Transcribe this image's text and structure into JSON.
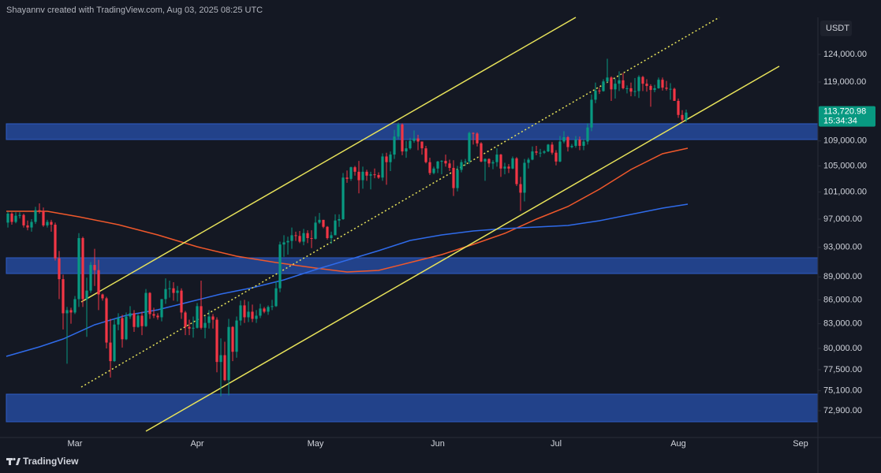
{
  "chart_data": {
    "type": "candlestick",
    "title": "Shayannv created with TradingView.com, Aug 03, 2025 08:25 UTC",
    "currency": "USDT",
    "watermark": "TradingView",
    "last_price": {
      "value": 113720.98,
      "label": "113,720.98"
    },
    "countdown": "15:34:34",
    "log_scale": true,
    "up_color": "#089981",
    "down_color": "#f23645",
    "ylim": [
      70050,
      131040
    ],
    "yticks": [
      {
        "value": 124000,
        "label": "124,000.00"
      },
      {
        "value": 119000,
        "label": "119,000.00"
      },
      {
        "value": 109000,
        "label": "109,000.00"
      },
      {
        "value": 105000,
        "label": "105,000.00"
      },
      {
        "value": 101000,
        "label": "101,000.00"
      },
      {
        "value": 97000,
        "label": "97,000.00"
      },
      {
        "value": 93000,
        "label": "93,000.00"
      },
      {
        "value": 89000,
        "label": "89,000.00"
      },
      {
        "value": 86000,
        "label": "86,000.00"
      },
      {
        "value": 83000,
        "label": "83,000.00"
      },
      {
        "value": 80000,
        "label": "80,000.00"
      },
      {
        "value": 77500,
        "label": "77,500.00"
      },
      {
        "value": 75100,
        "label": "75,100.00"
      },
      {
        "value": 72900,
        "label": "72,900.00"
      }
    ],
    "categories": [
      null,
      null,
      null,
      null,
      null,
      null,
      null,
      null,
      null,
      null,
      null,
      null,
      null,
      null,
      null,
      null,
      null,
      "Mar",
      null,
      null,
      null,
      null,
      null,
      null,
      null,
      null,
      null,
      null,
      null,
      null,
      null,
      null,
      null,
      null,
      null,
      null,
      null,
      null,
      null,
      null,
      null,
      null,
      null,
      null,
      null,
      null,
      null,
      null,
      "Apr",
      null,
      null,
      null,
      null,
      null,
      null,
      null,
      null,
      null,
      null,
      null,
      null,
      null,
      null,
      null,
      null,
      null,
      null,
      null,
      null,
      null,
      null,
      null,
      null,
      null,
      null,
      null,
      null,
      null,
      "May",
      null,
      null,
      null,
      null,
      null,
      null,
      null,
      null,
      null,
      null,
      null,
      null,
      null,
      null,
      null,
      null,
      null,
      null,
      null,
      null,
      null,
      null,
      null,
      null,
      null,
      null,
      null,
      null,
      null,
      null,
      "Jun",
      null,
      null,
      null,
      null,
      null,
      null,
      null,
      null,
      null,
      null,
      null,
      null,
      null,
      null,
      null,
      null,
      null,
      null,
      null,
      null,
      null,
      null,
      null,
      null,
      null,
      null,
      null,
      null,
      null,
      "Jul",
      null,
      null,
      null,
      null,
      null,
      null,
      null,
      null,
      null,
      null,
      null,
      null,
      null,
      null,
      null,
      null,
      null,
      null,
      null,
      null,
      null,
      null,
      null,
      null,
      null,
      null,
      null,
      null,
      null,
      null,
      "Aug",
      null,
      null,
      null,
      null,
      null,
      null,
      null,
      null,
      null,
      null,
      null,
      null,
      null,
      null,
      null,
      null,
      null,
      null,
      null,
      null,
      null,
      null,
      null,
      null,
      null,
      null,
      null,
      null,
      null,
      null,
      "Sep"
    ],
    "open": [
      96500,
      97800,
      96600,
      97500,
      97600,
      96100,
      95800,
      96600,
      98300,
      98200,
      96100,
      96600,
      96200,
      91500,
      88700,
      84300,
      84700,
      84400,
      86100,
      94300,
      86100,
      87200,
      90600,
      89900,
      86700,
      86200,
      80700,
      78500,
      82900,
      83700,
      81100,
      83900,
      84300,
      82600,
      84000,
      82700,
      86900,
      84200,
      84000,
      83800,
      86100,
      87400,
      87500,
      86900,
      87200,
      84400,
      82600,
      82400,
      82500,
      85200,
      82500,
      83100,
      83900,
      83500,
      78400,
      79200,
      76300,
      82600,
      79600,
      83400,
      85300,
      83800,
      84500,
      83600,
      84000,
      84900,
      84500,
      85100,
      85200,
      87500,
      93400,
      93700,
      93900,
      94700,
      94600,
      93800,
      95000,
      94300,
      94200,
      96500,
      96900,
      95900,
      94300,
      94700,
      96800,
      97000,
      103200,
      103000,
      104800,
      104100,
      102800,
      104100,
      103500,
      103700,
      103600,
      103200,
      106500,
      105600,
      106800,
      109700,
      111700,
      107300,
      107800,
      109000,
      109400,
      108900,
      107800,
      105600,
      103900,
      104600,
      105700,
      105800,
      105400,
      104700,
      101600,
      104400,
      105600,
      105700,
      110300,
      110200,
      108600,
      105700,
      106100,
      105400,
      105600,
      106800,
      104600,
      104900,
      104600,
      106200,
      102200,
      100900,
      105500,
      106000,
      107300,
      107100,
      107100,
      107300,
      108400,
      107100,
      105700,
      108900,
      109600,
      108000,
      108200,
      109200,
      108200,
      108900,
      111200,
      115900,
      117500,
      117400,
      119100,
      119800,
      117700,
      118700,
      119300,
      117900,
      117900,
      117300,
      117400,
      119900,
      118700,
      118300,
      117600,
      117900,
      119400,
      118000,
      117800,
      117800,
      115700,
      113300,
      112500,
      null,
      null,
      null,
      null,
      null,
      null,
      null,
      null,
      null,
      null,
      null,
      null,
      null,
      null,
      null,
      null,
      null,
      null,
      null,
      null,
      null,
      null,
      null,
      null,
      null,
      null,
      null,
      null,
      null
    ],
    "high": [
      98100,
      98000,
      98000,
      98000,
      97800,
      96800,
      97000,
      98800,
      99300,
      98700,
      96900,
      96900,
      96500,
      92500,
      89300,
      85100,
      85000,
      86500,
      95000,
      94500,
      88900,
      91000,
      92800,
      91300,
      86800,
      86400,
      83600,
      83600,
      84300,
      84100,
      84400,
      85200,
      84700,
      84200,
      84500,
      87400,
      87000,
      85000,
      84300,
      86100,
      88800,
      88500,
      88300,
      87800,
      87500,
      84600,
      83500,
      83900,
      85600,
      88500,
      83900,
      84700,
      84200,
      83800,
      81200,
      80800,
      83600,
      82700,
      83900,
      85900,
      86000,
      85800,
      85400,
      84700,
      85500,
      85100,
      85300,
      86000,
      88400,
      93800,
      94700,
      94500,
      95800,
      95200,
      95300,
      95600,
      95400,
      95400,
      97400,
      97900,
      96900,
      96000,
      95200,
      97700,
      97700,
      103900,
      104300,
      104900,
      105000,
      105800,
      104900,
      104400,
      104100,
      104600,
      104000,
      107000,
      107100,
      107300,
      110800,
      112000,
      111900,
      109000,
      109500,
      110700,
      110000,
      108900,
      108200,
      106300,
      104900,
      105800,
      105900,
      106800,
      106000,
      105900,
      105000,
      106000,
      106100,
      110500,
      110400,
      110400,
      108800,
      106200,
      106200,
      105900,
      107800,
      106900,
      105500,
      105300,
      106500,
      106400,
      103300,
      106100,
      106300,
      108100,
      108200,
      107700,
      107500,
      108500,
      108800,
      107500,
      109800,
      110600,
      109800,
      108500,
      109800,
      109700,
      109200,
      111900,
      116800,
      118900,
      118000,
      119500,
      123200,
      120000,
      119600,
      120900,
      120600,
      118400,
      118900,
      119700,
      120200,
      120100,
      119500,
      118600,
      118500,
      119800,
      119800,
      119200,
      118800,
      118000,
      116100,
      114100,
      114200,
      null,
      null,
      null,
      null,
      null,
      null,
      null,
      null,
      null,
      null,
      null,
      null,
      null,
      null,
      null,
      null,
      null,
      null,
      null,
      null,
      null,
      null,
      null,
      null,
      null,
      null,
      null,
      null,
      null
    ],
    "low": [
      95800,
      96200,
      96400,
      97100,
      95800,
      95400,
      95200,
      96300,
      97800,
      95900,
      95800,
      95200,
      91200,
      86100,
      82300,
      78200,
      83000,
      84200,
      85100,
      85100,
      81400,
      86900,
      87800,
      84700,
      85900,
      80000,
      76600,
      78400,
      82200,
      80100,
      81000,
      83600,
      82000,
      82500,
      81600,
      82600,
      83600,
      83700,
      83500,
      83300,
      85500,
      86300,
      85900,
      85800,
      83600,
      81600,
      81600,
      81300,
      82400,
      82300,
      81200,
      82400,
      82400,
      77200,
      74500,
      76200,
      74600,
      78500,
      78900,
      82800,
      83100,
      83200,
      83200,
      83100,
      83700,
      84300,
      84100,
      84700,
      85100,
      87000,
      91700,
      92000,
      92800,
      93900,
      93600,
      93300,
      93600,
      92900,
      94100,
      96300,
      95700,
      94100,
      93500,
      94700,
      95900,
      96900,
      102400,
      102700,
      103500,
      100800,
      101500,
      102700,
      101400,
      103100,
      103000,
      102700,
      102100,
      104200,
      106100,
      109300,
      106700,
      106300,
      107600,
      108700,
      107500,
      106800,
      105400,
      103600,
      103700,
      103900,
      103700,
      104900,
      104200,
      100400,
      101100,
      104000,
      105000,
      105300,
      108400,
      108100,
      105600,
      102700,
      104800,
      104500,
      104900,
      103300,
      103700,
      103900,
      104500,
      101900,
      98200,
      99600,
      104600,
      105900,
      106700,
      106400,
      106900,
      107200,
      106800,
      105100,
      105600,
      108600,
      107300,
      107800,
      107900,
      107500,
      107500,
      108400,
      110600,
      115300,
      116900,
      117300,
      118900,
      115700,
      116100,
      117400,
      117700,
      117000,
      116500,
      116500,
      116200,
      117400,
      117300,
      114700,
      117200,
      117800,
      117500,
      117500,
      115900,
      115700,
      112800,
      112100,
      112100,
      null,
      null,
      null,
      null,
      null,
      null,
      null,
      null,
      null,
      null,
      null,
      null,
      null,
      null,
      null,
      null,
      null,
      null,
      null,
      null,
      null,
      null,
      null,
      null,
      null,
      null,
      null,
      null,
      null
    ],
    "close": [
      97800,
      96600,
      97500,
      97600,
      96100,
      95800,
      96600,
      98300,
      98200,
      96100,
      96600,
      96200,
      91500,
      88700,
      84300,
      84700,
      84400,
      86100,
      94300,
      86100,
      87200,
      90600,
      89900,
      86700,
      86200,
      80700,
      78500,
      82900,
      83700,
      81100,
      83900,
      84300,
      82600,
      84000,
      82700,
      86900,
      84200,
      84000,
      83800,
      86100,
      87400,
      87500,
      86900,
      87200,
      84400,
      82600,
      82400,
      82500,
      85200,
      82500,
      83100,
      83900,
      83500,
      78400,
      79200,
      76300,
      82600,
      79600,
      83400,
      85300,
      83800,
      84500,
      83600,
      84000,
      84900,
      84500,
      85100,
      85200,
      87500,
      93400,
      93700,
      93900,
      94700,
      94600,
      93800,
      95000,
      94300,
      94200,
      96500,
      96900,
      95900,
      94300,
      94700,
      96800,
      97000,
      103200,
      103000,
      104800,
      104100,
      102800,
      104100,
      103500,
      103700,
      103600,
      103200,
      106500,
      105600,
      106800,
      109700,
      111700,
      107300,
      107800,
      109000,
      109400,
      108900,
      107800,
      105600,
      103900,
      104600,
      105700,
      105800,
      105400,
      104700,
      101600,
      104400,
      105600,
      105700,
      110300,
      110200,
      108600,
      105700,
      106100,
      105400,
      105600,
      106800,
      104600,
      104900,
      104600,
      106200,
      102200,
      100900,
      105500,
      106000,
      107300,
      107100,
      107100,
      107300,
      108400,
      107100,
      105700,
      108900,
      109600,
      108000,
      108200,
      109200,
      108200,
      108900,
      111200,
      115900,
      117500,
      117400,
      119100,
      119800,
      117700,
      118700,
      119300,
      117900,
      117900,
      117300,
      117400,
      119900,
      118700,
      118300,
      117600,
      117900,
      119400,
      118000,
      117800,
      117800,
      115700,
      113300,
      112500,
      113700,
      null,
      null,
      null,
      null,
      null,
      null,
      null,
      null,
      null,
      null,
      null,
      null,
      null,
      null,
      null,
      null,
      null,
      null,
      null,
      null,
      null,
      null,
      null,
      null,
      null,
      null,
      null,
      null,
      null
    ]
  }
}
